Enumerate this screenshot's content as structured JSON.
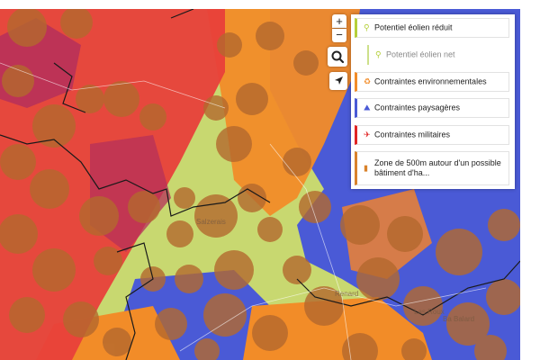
{
  "map": {
    "place_labels": [
      "Salzerais",
      "Renard",
      "Las Roux",
      "Ba Balard"
    ],
    "colors": {
      "military": "#e8403a",
      "military_dark": "#b5305a",
      "environment": "#f28c28",
      "landscape": "#4a5ad6",
      "potential": "#c8d870",
      "buffer_zone": "#b4692e"
    }
  },
  "controls": {
    "zoom_in_label": "+",
    "zoom_out_label": "−",
    "search_icon": "magnifier-icon",
    "locate_icon": "locate-arrow-icon"
  },
  "legend": {
    "items": [
      {
        "id": "eolien-reduit",
        "label": "Potentiel éolien réduit",
        "icon": "wind-turbine-icon",
        "color": "#b5cf3a"
      },
      {
        "id": "eolien-net",
        "label": "Potentiel éolien net",
        "icon": "wind-turbine-icon",
        "color": "#cde08a"
      },
      {
        "id": "env",
        "label": "Contraintes environnementales",
        "icon": "recycle-icon",
        "color": "#f28c28"
      },
      {
        "id": "pays",
        "label": "Contraintes paysagères",
        "icon": "mountain-icon",
        "color": "#4a5ad6"
      },
      {
        "id": "mil",
        "label": "Contraintes militaires",
        "icon": "plane-icon",
        "color": "#e02424"
      },
      {
        "id": "zone",
        "label": "Zone de 500m autour d'un possible bâtiment d'ha...",
        "icon": "building-icon",
        "color": "#d9822b"
      }
    ]
  }
}
